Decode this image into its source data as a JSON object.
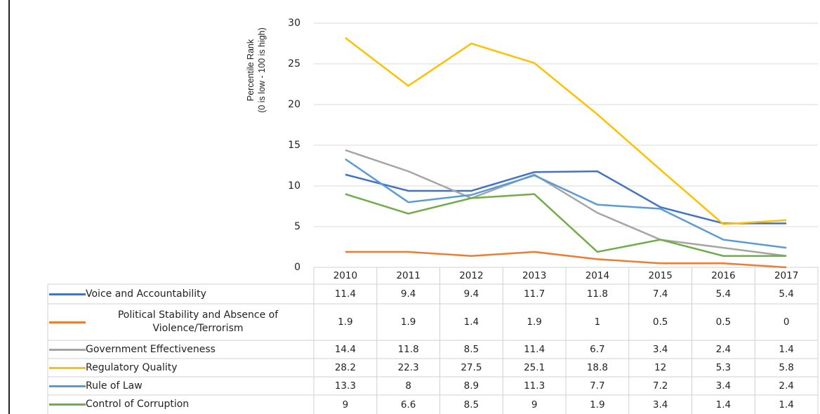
{
  "chart_data": {
    "type": "line",
    "y_label_lines": [
      "Percentile Rank",
      "(0 is low - 100 is high)"
    ],
    "categories": [
      "2010",
      "2011",
      "2012",
      "2013",
      "2014",
      "2015",
      "2016",
      "2017"
    ],
    "ylim": [
      0,
      30
    ],
    "yticks": [
      0,
      5,
      10,
      15,
      20,
      25,
      30
    ],
    "grid": true,
    "series": [
      {
        "name": "Voice and Accountability",
        "color": "#4472c4",
        "values": [
          11.4,
          9.4,
          9.4,
          11.7,
          11.8,
          7.4,
          5.4,
          5.4
        ]
      },
      {
        "name": "Political Stability and Absence of Violence/Terrorism",
        "color": "#ed7d31",
        "values": [
          1.9,
          1.9,
          1.4,
          1.9,
          1,
          0.5,
          0.5,
          0
        ]
      },
      {
        "name": "Government Effectiveness",
        "color": "#a5a5a5",
        "values": [
          14.4,
          11.8,
          8.5,
          11.4,
          6.7,
          3.4,
          2.4,
          1.4
        ]
      },
      {
        "name": "Regulatory Quality",
        "color": "#ffc000",
        "values": [
          28.2,
          22.3,
          27.5,
          25.1,
          18.8,
          12,
          5.3,
          5.8
        ]
      },
      {
        "name": "Rule of Law",
        "color": "#5b9bd5",
        "values": [
          13.3,
          8,
          8.9,
          11.3,
          7.7,
          7.2,
          3.4,
          2.4
        ]
      },
      {
        "name": "Control of Corruption",
        "color": "#70ad47",
        "values": [
          9,
          6.6,
          8.5,
          9,
          1.9,
          3.4,
          1.4,
          1.4
        ]
      }
    ]
  }
}
